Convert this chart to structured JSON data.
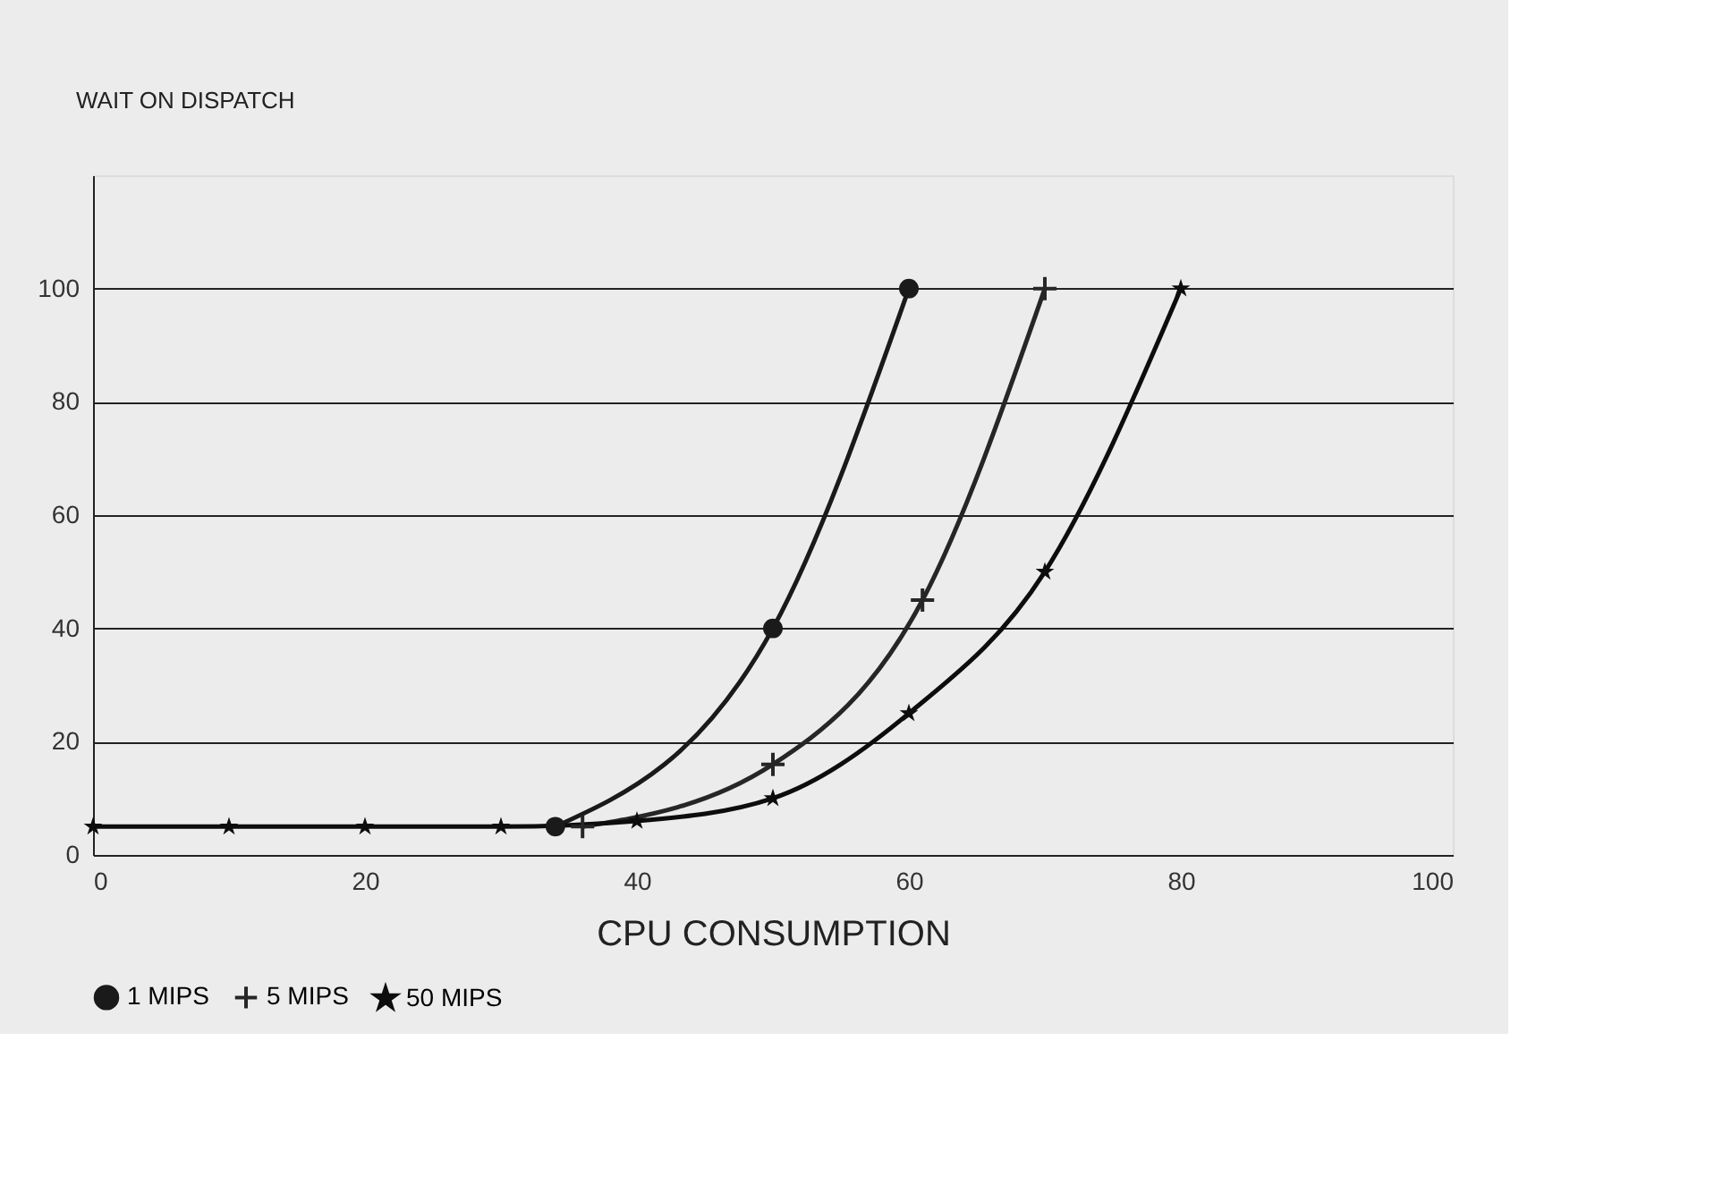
{
  "chart_data": {
    "type": "line",
    "ylabel": "WAIT ON DISPATCH",
    "xlabel": "CPU CONSUMPTION",
    "xlim": [
      0,
      100
    ],
    "xticks": [
      0,
      20,
      40,
      60,
      80,
      100
    ],
    "ylim": [
      0,
      120
    ],
    "yticks": [
      0,
      20,
      40,
      60,
      80,
      100
    ],
    "grid": "y",
    "legend": "bottom",
    "line_style": "solid",
    "series": [
      {
        "name": "1 MIPS",
        "color": "#1a1a1a",
        "marker": "circle",
        "x": [
          34,
          50,
          60
        ],
        "values": [
          5,
          40,
          100
        ]
      },
      {
        "name": "5 MIPS",
        "color": "#262626",
        "marker": "cross",
        "x": [
          36,
          50,
          61,
          70
        ],
        "values": [
          5,
          16,
          45,
          100
        ]
      },
      {
        "name": "50 MIPS",
        "color": "#0d0d0d",
        "marker": "star",
        "x": [
          0,
          10,
          20,
          30,
          40,
          50,
          60,
          70,
          80
        ],
        "values": [
          5,
          5,
          5,
          5,
          6,
          10,
          25,
          50,
          100
        ]
      }
    ]
  }
}
